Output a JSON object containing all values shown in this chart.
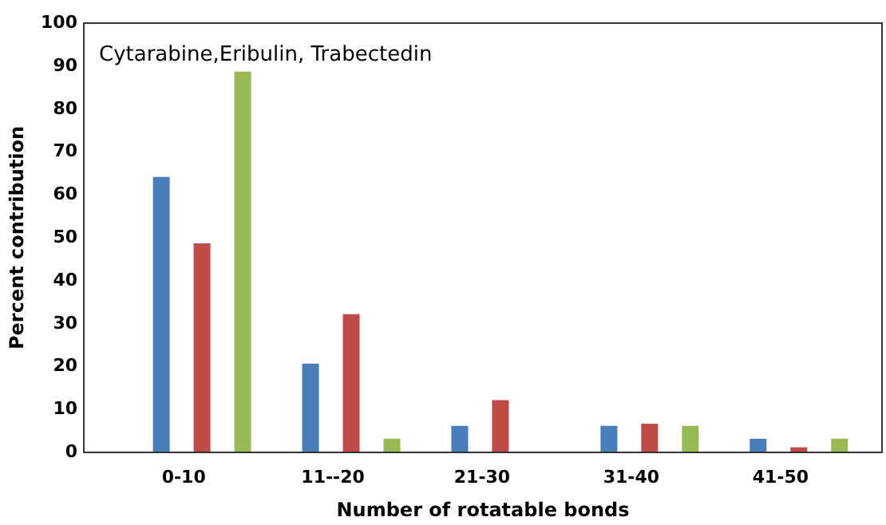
{
  "chart_data": {
    "type": "bar",
    "annotations": [
      "Cytarabine,Eribulin, Trabectedin"
    ],
    "xlabel": "Number of rotatable bonds",
    "ylabel": "Percent contribution",
    "categories": [
      "0-10",
      "11--20",
      "21-30",
      "31-40",
      "41-50"
    ],
    "series": [
      {
        "color": "#4a7ebb",
        "values": [
          64,
          20.5,
          6,
          6,
          3
        ]
      },
      {
        "color": "#be4b48",
        "values": [
          48.5,
          32,
          12,
          6.5,
          1
        ]
      },
      {
        "color": "#98b954",
        "values": [
          88.5,
          3,
          0,
          6,
          3
        ]
      }
    ],
    "ylim": [
      0,
      100
    ],
    "yticks": [
      0,
      10,
      20,
      30,
      40,
      50,
      60,
      70,
      80,
      90,
      100
    ],
    "grid": false,
    "legend": false
  }
}
